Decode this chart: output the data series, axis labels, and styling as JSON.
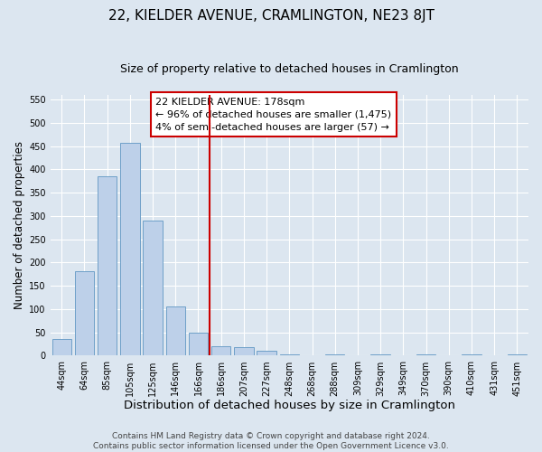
{
  "title": "22, KIELDER AVENUE, CRAMLINGTON, NE23 8JT",
  "subtitle": "Size of property relative to detached houses in Cramlington",
  "xlabel": "Distribution of detached houses by size in Cramlington",
  "ylabel": "Number of detached properties",
  "bar_labels": [
    "44sqm",
    "64sqm",
    "85sqm",
    "105sqm",
    "125sqm",
    "146sqm",
    "166sqm",
    "186sqm",
    "207sqm",
    "227sqm",
    "248sqm",
    "268sqm",
    "288sqm",
    "309sqm",
    "329sqm",
    "349sqm",
    "370sqm",
    "390sqm",
    "410sqm",
    "431sqm",
    "451sqm"
  ],
  "bar_values": [
    35,
    182,
    385,
    457,
    290,
    105,
    50,
    20,
    18,
    10,
    2,
    0,
    3,
    0,
    3,
    0,
    3,
    0,
    3,
    0,
    3
  ],
  "bar_color": "#bdd0e9",
  "bar_edge_color": "#6fa0c8",
  "vline_x_index": 7,
  "vline_color": "#cc0000",
  "annotation_box_text": "22 KIELDER AVENUE: 178sqm\n← 96% of detached houses are smaller (1,475)\n4% of semi-detached houses are larger (57) →",
  "annotation_facecolor": "white",
  "annotation_edgecolor": "#cc0000",
  "ylim": [
    0,
    560
  ],
  "yticks": [
    0,
    50,
    100,
    150,
    200,
    250,
    300,
    350,
    400,
    450,
    500,
    550
  ],
  "background_color": "#dce6f0",
  "plot_bg_color": "#dce6f0",
  "footer_text": "Contains HM Land Registry data © Crown copyright and database right 2024.\nContains public sector information licensed under the Open Government Licence v3.0.",
  "title_fontsize": 11,
  "subtitle_fontsize": 9,
  "xlabel_fontsize": 9.5,
  "ylabel_fontsize": 8.5,
  "tick_fontsize": 7,
  "annotation_fontsize": 8,
  "footer_fontsize": 6.5
}
